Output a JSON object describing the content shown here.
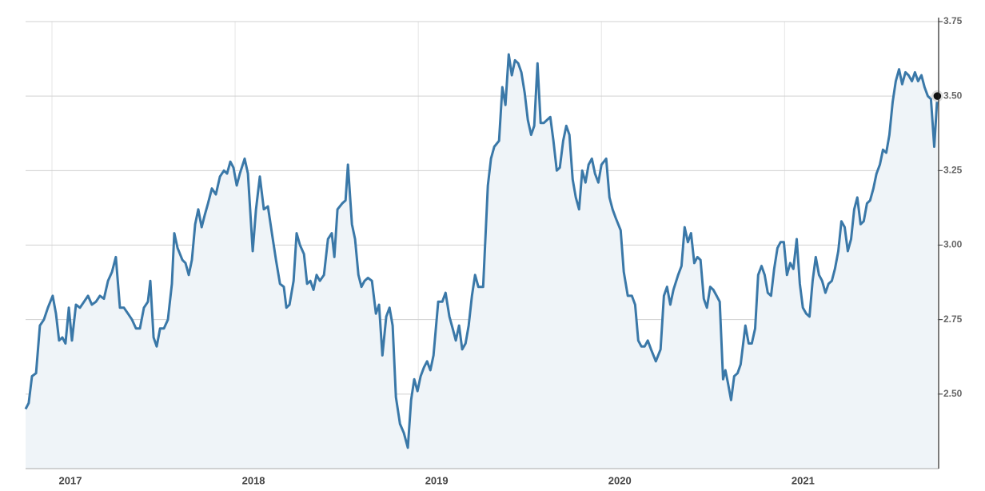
{
  "chart_data": {
    "type": "line",
    "color": "#3a78a8",
    "fill": "#eff4f8",
    "grid": true,
    "xlim": [
      2016.856,
      2021.841
    ],
    "xticks": [
      2017,
      2018,
      2019,
      2020,
      2021
    ],
    "ylim": [
      2.25,
      3.75
    ],
    "yticks": [
      {
        "value": 2.5,
        "label": "2.50"
      },
      {
        "value": 2.75,
        "label": "2.75"
      },
      {
        "value": 3,
        "label": "3.00"
      },
      {
        "value": 3.25,
        "label": "3.25"
      },
      {
        "value": 3.5,
        "label": "3.50"
      },
      {
        "value": 3.75,
        "label": "3.75"
      }
    ],
    "x": [
      2016.856,
      2016.873,
      2016.891,
      2016.913,
      2016.934,
      2016.956,
      2016.978,
      2017.004,
      2017.022,
      2017.039,
      2017.057,
      2017.074,
      2017.092,
      2017.109,
      2017.131,
      2017.153,
      2017.175,
      2017.197,
      2017.218,
      2017.24,
      2017.262,
      2017.284,
      2017.306,
      2017.328,
      2017.349,
      2017.371,
      2017.393,
      2017.415,
      2017.437,
      2017.459,
      2017.48,
      2017.502,
      2017.524,
      2017.537,
      2017.555,
      2017.572,
      2017.59,
      2017.611,
      2017.633,
      2017.655,
      2017.668,
      2017.686,
      2017.712,
      2017.729,
      2017.747,
      2017.764,
      2017.782,
      2017.799,
      2017.817,
      2017.834,
      2017.852,
      2017.873,
      2017.895,
      2017.917,
      2017.939,
      2017.956,
      2017.974,
      2017.991,
      2018.009,
      2018.026,
      2018.052,
      2018.07,
      2018.096,
      2018.114,
      2018.135,
      2018.157,
      2018.179,
      2018.201,
      2018.223,
      2018.245,
      2018.266,
      2018.28,
      2018.297,
      2018.319,
      2018.336,
      2018.354,
      2018.376,
      2018.393,
      2018.411,
      2018.428,
      2018.445,
      2018.463,
      2018.485,
      2018.507,
      2018.528,
      2018.542,
      2018.559,
      2018.585,
      2018.603,
      2018.616,
      2018.638,
      2018.655,
      2018.673,
      2018.69,
      2018.707,
      2018.725,
      2018.747,
      2018.769,
      2018.786,
      2018.804,
      2018.825,
      2018.843,
      2018.86,
      2018.878,
      2018.9,
      2018.921,
      2018.943,
      2018.961,
      2018.978,
      2018.996,
      2019.013,
      2019.031,
      2019.048,
      2019.066,
      2019.083,
      2019.109,
      2019.131,
      2019.149,
      2019.17,
      2019.188,
      2019.205,
      2019.223,
      2019.24,
      2019.258,
      2019.275,
      2019.293,
      2019.31,
      2019.328,
      2019.354,
      2019.38,
      2019.397,
      2019.415,
      2019.441,
      2019.459,
      2019.476,
      2019.494,
      2019.511,
      2019.528,
      2019.546,
      2019.563,
      2019.581,
      2019.598,
      2019.616,
      2019.633,
      2019.651,
      2019.668,
      2019.686,
      2019.703,
      2019.721,
      2019.738,
      2019.756,
      2019.773,
      2019.791,
      2019.808,
      2019.825,
      2019.843,
      2019.86,
      2019.878,
      2019.895,
      2019.913,
      2019.93,
      2019.948,
      2019.965,
      2019.983,
      2020.0,
      2020.026,
      2020.044,
      2020.061,
      2020.079,
      2020.105,
      2020.122,
      2020.144,
      2020.166,
      2020.184,
      2020.201,
      2020.218,
      2020.236,
      2020.253,
      2020.271,
      2020.297,
      2020.323,
      2020.341,
      2020.358,
      2020.376,
      2020.393,
      2020.419,
      2020.437,
      2020.454,
      2020.472,
      2020.489,
      2020.507,
      2020.524,
      2020.541,
      2020.559,
      2020.576,
      2020.594,
      2020.611,
      2020.629,
      2020.646,
      2020.664,
      2020.677,
      2020.69,
      2020.708,
      2020.725,
      2020.743,
      2020.76,
      2020.786,
      2020.804,
      2020.821,
      2020.839,
      2020.856,
      2020.874,
      2020.891,
      2020.908,
      2020.926,
      2020.943,
      2020.961,
      2020.978,
      2020.996,
      2021.013,
      2021.031,
      2021.048,
      2021.066,
      2021.083,
      2021.1,
      2021.118,
      2021.136,
      2021.153,
      2021.17,
      2021.188,
      2021.205,
      2021.223,
      2021.24,
      2021.258,
      2021.275,
      2021.293,
      2021.31,
      2021.328,
      2021.345,
      2021.363,
      2021.38,
      2021.397,
      2021.415,
      2021.432,
      2021.45,
      2021.467,
      2021.485,
      2021.502,
      2021.52,
      2021.537,
      2021.555,
      2021.572,
      2021.59,
      2021.607,
      2021.625,
      2021.642,
      2021.66,
      2021.677,
      2021.695,
      2021.712,
      2021.729,
      2021.747,
      2021.764,
      2021.782,
      2021.799,
      2021.817,
      2021.834
    ],
    "values": [
      2.45,
      2.47,
      2.56,
      2.57,
      2.73,
      2.75,
      2.79,
      2.83,
      2.77,
      2.68,
      2.69,
      2.67,
      2.79,
      2.68,
      2.8,
      2.79,
      2.81,
      2.83,
      2.8,
      2.81,
      2.83,
      2.82,
      2.88,
      2.91,
      2.96,
      2.79,
      2.79,
      2.77,
      2.75,
      2.72,
      2.72,
      2.79,
      2.81,
      2.88,
      2.69,
      2.66,
      2.72,
      2.72,
      2.75,
      2.87,
      3.04,
      2.99,
      2.95,
      2.94,
      2.9,
      2.95,
      3.07,
      3.12,
      3.06,
      3.1,
      3.14,
      3.19,
      3.17,
      3.23,
      3.25,
      3.24,
      3.28,
      3.26,
      3.2,
      3.24,
      3.29,
      3.24,
      2.98,
      3.12,
      3.23,
      3.12,
      3.13,
      3.04,
      2.95,
      2.87,
      2.86,
      2.79,
      2.8,
      2.88,
      3.04,
      3.0,
      2.97,
      2.87,
      2.88,
      2.85,
      2.9,
      2.88,
      2.9,
      3.02,
      3.04,
      2.96,
      3.12,
      3.14,
      3.15,
      3.27,
      3.07,
      3.02,
      2.9,
      2.86,
      2.88,
      2.89,
      2.88,
      2.77,
      2.8,
      2.63,
      2.76,
      2.79,
      2.73,
      2.49,
      2.4,
      2.37,
      2.32,
      2.48,
      2.55,
      2.51,
      2.56,
      2.59,
      2.61,
      2.58,
      2.63,
      2.81,
      2.81,
      2.84,
      2.76,
      2.72,
      2.68,
      2.73,
      2.65,
      2.67,
      2.73,
      2.83,
      2.9,
      2.86,
      2.86,
      3.2,
      3.29,
      3.33,
      3.35,
      3.53,
      3.47,
      3.64,
      3.57,
      3.62,
      3.61,
      3.58,
      3.51,
      3.42,
      3.37,
      3.4,
      3.61,
      3.41,
      3.41,
      3.42,
      3.43,
      3.35,
      3.25,
      3.26,
      3.35,
      3.4,
      3.37,
      3.22,
      3.16,
      3.12,
      3.25,
      3.21,
      3.27,
      3.29,
      3.24,
      3.21,
      3.27,
      3.29,
      3.16,
      3.12,
      3.09,
      3.05,
      2.91,
      2.83,
      2.83,
      2.8,
      2.68,
      2.66,
      2.66,
      2.68,
      2.65,
      2.61,
      2.65,
      2.83,
      2.86,
      2.8,
      2.85,
      2.9,
      2.93,
      3.06,
      3.01,
      3.04,
      2.94,
      2.96,
      2.95,
      2.82,
      2.79,
      2.86,
      2.85,
      2.83,
      2.81,
      2.55,
      2.58,
      2.54,
      2.48,
      2.56,
      2.57,
      2.6,
      2.73,
      2.67,
      2.67,
      2.72,
      2.9,
      2.93,
      2.9,
      2.84,
      2.83,
      2.92,
      2.99,
      3.01,
      3.01,
      2.9,
      2.94,
      2.92,
      3.02,
      2.87,
      2.79,
      2.77,
      2.76,
      2.88,
      2.96,
      2.9,
      2.88,
      2.84,
      2.87,
      2.88,
      2.92,
      2.98,
      3.08,
      3.06,
      2.98,
      3.02,
      3.12,
      3.16,
      3.07,
      3.08,
      3.14,
      3.15,
      3.19,
      3.24,
      3.27,
      3.32,
      3.31,
      3.37,
      3.48,
      3.55,
      3.59,
      3.54,
      3.58,
      3.57,
      3.55,
      3.58,
      3.55,
      3.57,
      3.53,
      3.5,
      3.49,
      3.33,
      3.5
    ]
  }
}
